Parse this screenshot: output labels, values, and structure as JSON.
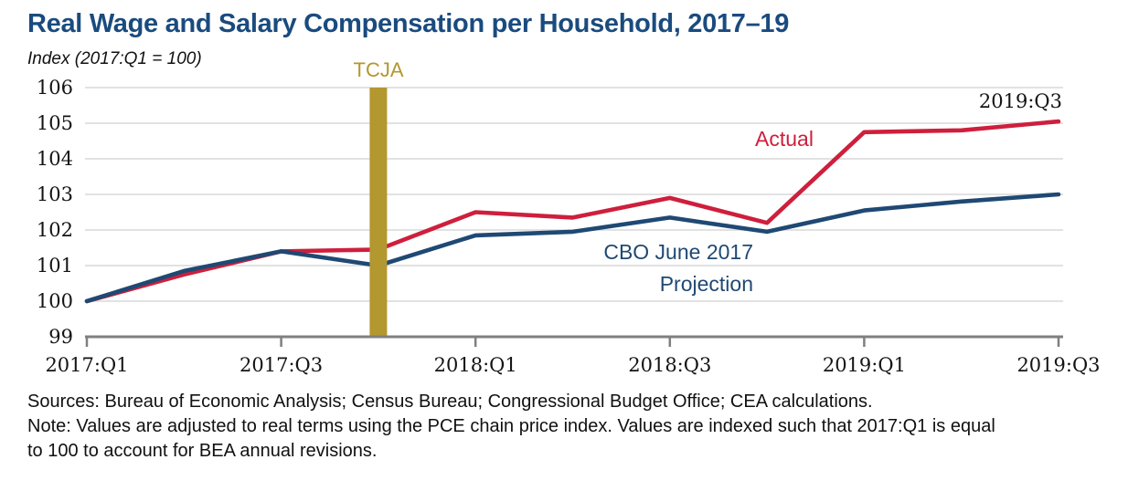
{
  "title": "Real Wage and Salary Compensation per Household, 2017–19",
  "subtitle": "Index (2017:Q1 = 100)",
  "annotations": {
    "tcja": "TCJA",
    "actual": "Actual",
    "cbo_line1": "CBO June 2017",
    "cbo_line2": "Projection",
    "endpoint": "2019:Q3"
  },
  "footer": {
    "sources": "Sources: Bureau of Economic Analysis; Census Bureau; Congressional Budget Office; CEA calculations.",
    "note_line1": "Note: Values are adjusted to real terms using the PCE chain price index. Values are indexed such that 2017:Q1 is equal",
    "note_line2": "to 100 to account for BEA annual revisions."
  },
  "colors": {
    "title_navy": "#1A4B7E",
    "line_red": "#CE1F3C",
    "line_blue": "#1F4973",
    "tcja_gold": "#B3972F",
    "axis_gray": "#7F7F7F",
    "grid_gray": "#D8D8D8",
    "text_black": "#141414"
  },
  "chart_data": {
    "type": "line",
    "title": "Real Wage and Salary Compensation per Household, 2017–19",
    "ylabel": "Index (2017:Q1 = 100)",
    "categories": [
      "2017:Q1",
      "2017:Q2",
      "2017:Q3",
      "2017:Q4",
      "2018:Q1",
      "2018:Q2",
      "2018:Q3",
      "2018:Q4",
      "2019:Q1",
      "2019:Q2",
      "2019:Q3"
    ],
    "series": [
      {
        "name": "Actual",
        "color": "#CE1F3C",
        "values": [
          100.0,
          100.75,
          101.4,
          101.45,
          102.5,
          102.35,
          102.9,
          102.2,
          104.75,
          104.8,
          105.05
        ]
      },
      {
        "name": "CBO June 2017 Projection",
        "color": "#1F4973",
        "values": [
          100.0,
          100.85,
          101.4,
          101.0,
          101.85,
          101.95,
          102.35,
          101.95,
          102.55,
          102.8,
          103.0
        ]
      }
    ],
    "ylim": [
      99,
      106
    ],
    "yticks": [
      99,
      100,
      101,
      102,
      103,
      104,
      105,
      106
    ],
    "x_tick_labels": [
      "2017:Q1",
      "2017:Q3",
      "2018:Q1",
      "2018:Q3",
      "2019:Q1",
      "2019:Q3"
    ],
    "grid": "horizontal-gridlines-on",
    "legend_position": "inline-labels",
    "event_marker": {
      "category": "2017:Q4",
      "label": "TCJA",
      "color": "#B3972F"
    }
  }
}
